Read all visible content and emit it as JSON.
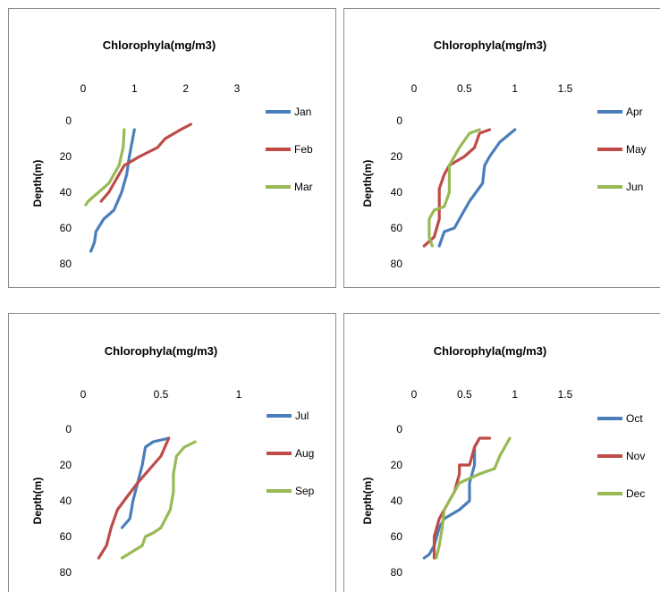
{
  "colors": {
    "blue": "#4a7ebb",
    "red": "#be4b48",
    "green": "#98b954"
  },
  "chart_data": [
    {
      "type": "line",
      "title": "Chlorophyla(mg/m3)",
      "xlabel": "",
      "ylabel": "Depth(m)",
      "xlim": [
        0,
        3
      ],
      "ylim": [
        0,
        80
      ],
      "xticks": [
        "0",
        "1",
        "2",
        "3"
      ],
      "yticks": [
        "0",
        "20",
        "40",
        "60",
        "80"
      ],
      "legend": "right",
      "series": [
        {
          "name": "Jan",
          "color": "#4a7ebb",
          "points": [
            [
              1.0,
              5
            ],
            [
              0.9,
              20
            ],
            [
              0.85,
              30
            ],
            [
              0.75,
              40
            ],
            [
              0.6,
              50
            ],
            [
              0.4,
              55
            ],
            [
              0.25,
              62
            ],
            [
              0.22,
              68
            ],
            [
              0.15,
              73
            ]
          ]
        },
        {
          "name": "Feb",
          "color": "#be4b48",
          "points": [
            [
              2.1,
              2
            ],
            [
              1.9,
              5
            ],
            [
              1.6,
              10
            ],
            [
              1.45,
              15
            ],
            [
              1.1,
              20
            ],
            [
              0.8,
              25
            ],
            [
              0.7,
              30
            ],
            [
              0.6,
              35
            ],
            [
              0.5,
              40
            ],
            [
              0.35,
              45
            ]
          ]
        },
        {
          "name": "Mar",
          "color": "#98b954",
          "points": [
            [
              0.8,
              5
            ],
            [
              0.78,
              15
            ],
            [
              0.7,
              25
            ],
            [
              0.5,
              35
            ],
            [
              0.3,
              40
            ],
            [
              0.1,
              45
            ],
            [
              0.05,
              47
            ]
          ]
        }
      ]
    },
    {
      "type": "line",
      "title": "Chlorophyla(mg/m3)",
      "xlabel": "",
      "ylabel": "Depth(m)",
      "xlim": [
        0,
        1.5
      ],
      "ylim": [
        0,
        80
      ],
      "xticks": [
        "0",
        "0.5",
        "1",
        "1.5"
      ],
      "yticks": [
        "0",
        "20",
        "40",
        "60",
        "80"
      ],
      "legend": "right",
      "series": [
        {
          "name": "Apr",
          "color": "#4a7ebb",
          "points": [
            [
              1.0,
              5
            ],
            [
              0.85,
              12
            ],
            [
              0.75,
              20
            ],
            [
              0.7,
              25
            ],
            [
              0.68,
              35
            ],
            [
              0.55,
              45
            ],
            [
              0.45,
              55
            ],
            [
              0.4,
              60
            ],
            [
              0.3,
              62
            ],
            [
              0.25,
              70
            ]
          ]
        },
        {
          "name": "May",
          "color": "#be4b48",
          "points": [
            [
              0.75,
              5
            ],
            [
              0.65,
              7
            ],
            [
              0.6,
              15
            ],
            [
              0.5,
              20
            ],
            [
              0.35,
              25
            ],
            [
              0.3,
              30
            ],
            [
              0.25,
              38
            ],
            [
              0.25,
              45
            ],
            [
              0.25,
              55
            ],
            [
              0.2,
              65
            ],
            [
              0.1,
              70
            ]
          ]
        },
        {
          "name": "Jun",
          "color": "#98b954",
          "points": [
            [
              0.65,
              5
            ],
            [
              0.55,
              7
            ],
            [
              0.45,
              15
            ],
            [
              0.35,
              25
            ],
            [
              0.35,
              40
            ],
            [
              0.3,
              48
            ],
            [
              0.2,
              50
            ],
            [
              0.15,
              55
            ],
            [
              0.15,
              65
            ],
            [
              0.18,
              70
            ]
          ]
        }
      ]
    },
    {
      "type": "line",
      "title": "Chlorophyla(mg/m3)",
      "xlabel": "",
      "ylabel": "Depth(m)",
      "xlim": [
        0,
        1
      ],
      "ylim": [
        0,
        80
      ],
      "xticks": [
        "0",
        "0.5",
        "1"
      ],
      "yticks": [
        "0",
        "20",
        "40",
        "60",
        "80"
      ],
      "legend": "right",
      "series": [
        {
          "name": "Jul",
          "color": "#4a7ebb",
          "points": [
            [
              0.55,
              5
            ],
            [
              0.45,
              7
            ],
            [
              0.4,
              10
            ],
            [
              0.38,
              20
            ],
            [
              0.35,
              30
            ],
            [
              0.32,
              40
            ],
            [
              0.3,
              50
            ],
            [
              0.25,
              55
            ]
          ]
        },
        {
          "name": "Aug",
          "color": "#be4b48",
          "points": [
            [
              0.55,
              5
            ],
            [
              0.5,
              15
            ],
            [
              0.45,
              20
            ],
            [
              0.35,
              30
            ],
            [
              0.28,
              38
            ],
            [
              0.22,
              45
            ],
            [
              0.18,
              55
            ],
            [
              0.15,
              65
            ],
            [
              0.1,
              72
            ]
          ]
        },
        {
          "name": "Sep",
          "color": "#98b954",
          "points": [
            [
              0.72,
              7
            ],
            [
              0.65,
              10
            ],
            [
              0.6,
              15
            ],
            [
              0.58,
              25
            ],
            [
              0.58,
              35
            ],
            [
              0.56,
              45
            ],
            [
              0.5,
              55
            ],
            [
              0.45,
              58
            ],
            [
              0.4,
              60
            ],
            [
              0.38,
              65
            ],
            [
              0.25,
              72
            ]
          ]
        }
      ]
    },
    {
      "type": "line",
      "title": "Chlorophyla(mg/m3)",
      "xlabel": "",
      "ylabel": "Depth(m)",
      "xlim": [
        0,
        1.5
      ],
      "ylim": [
        0,
        80
      ],
      "xticks": [
        "0",
        "0.5",
        "1",
        "1.5"
      ],
      "yticks": [
        "0",
        "20",
        "40",
        "60",
        "80"
      ],
      "legend": "right",
      "series": [
        {
          "name": "Oct",
          "color": "#4a7ebb",
          "points": [
            [
              0.65,
              5
            ],
            [
              0.6,
              10
            ],
            [
              0.6,
              20
            ],
            [
              0.55,
              30
            ],
            [
              0.55,
              40
            ],
            [
              0.45,
              45
            ],
            [
              0.3,
              50
            ],
            [
              0.25,
              55
            ],
            [
              0.2,
              65
            ],
            [
              0.15,
              70
            ],
            [
              0.1,
              72
            ]
          ]
        },
        {
          "name": "Nov",
          "color": "#be4b48",
          "points": [
            [
              0.75,
              5
            ],
            [
              0.65,
              5
            ],
            [
              0.6,
              10
            ],
            [
              0.55,
              20
            ],
            [
              0.45,
              20
            ],
            [
              0.45,
              25
            ],
            [
              0.4,
              35
            ],
            [
              0.3,
              45
            ],
            [
              0.25,
              50
            ],
            [
              0.2,
              60
            ],
            [
              0.2,
              72
            ]
          ]
        },
        {
          "name": "Dec",
          "color": "#98b954",
          "points": [
            [
              0.95,
              5
            ],
            [
              0.85,
              15
            ],
            [
              0.8,
              22
            ],
            [
              0.65,
              25
            ],
            [
              0.45,
              30
            ],
            [
              0.4,
              35
            ],
            [
              0.35,
              40
            ],
            [
              0.3,
              45
            ],
            [
              0.28,
              55
            ],
            [
              0.25,
              65
            ],
            [
              0.22,
              72
            ]
          ]
        }
      ]
    }
  ]
}
